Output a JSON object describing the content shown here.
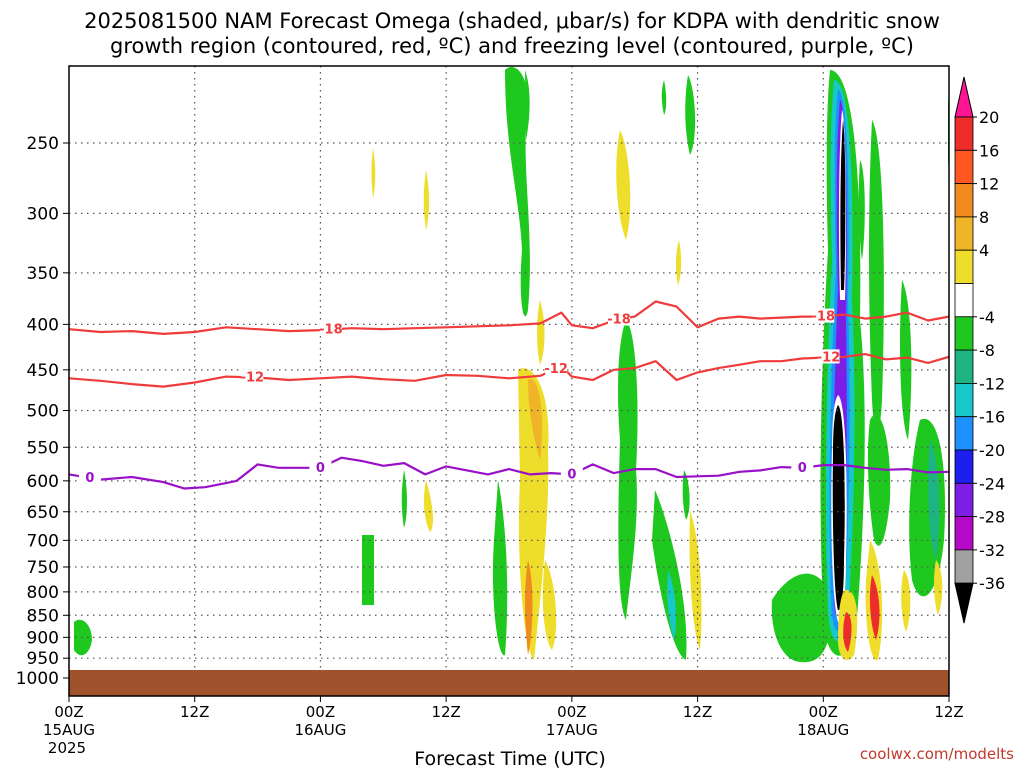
{
  "title": {
    "line1": "2025081500 NAM Forecast Omega (shaded, μbar/s) for KDPA with dendritic snow",
    "line2": "growth region (contoured, red, ºC) and freezing level (contoured, purple, ºC)"
  },
  "credit": "coolwx.com/modelts",
  "colors": {
    "dgz_contour": "#ef3b3b",
    "freezing_contour": "#9a10c8",
    "ground": "#a0522d",
    "grid": "#555555"
  },
  "chart_data": {
    "type": "heatmap",
    "xlabel": "Forecast Time (UTC)",
    "ylabel": "",
    "y_scale": "log-pressure",
    "ylim": [
      1030,
      200
    ],
    "x_range_hours": [
      0,
      84
    ],
    "grid": true,
    "yticks": [
      250,
      300,
      350,
      400,
      450,
      500,
      550,
      600,
      650,
      700,
      750,
      800,
      850,
      900,
      950,
      1000
    ],
    "xticks": [
      {
        "hour": 0,
        "label": "00Z",
        "date": "15AUG",
        "year": "2025"
      },
      {
        "hour": 12,
        "label": "12Z",
        "date": "",
        "year": ""
      },
      {
        "hour": 24,
        "label": "00Z",
        "date": "16AUG",
        "year": ""
      },
      {
        "hour": 36,
        "label": "12Z",
        "date": "",
        "year": ""
      },
      {
        "hour": 48,
        "label": "00Z",
        "date": "17AUG",
        "year": ""
      },
      {
        "hour": 60,
        "label": "12Z",
        "date": "",
        "year": ""
      },
      {
        "hour": 72,
        "label": "00Z",
        "date": "18AUG",
        "year": ""
      },
      {
        "hour": 84,
        "label": "12Z",
        "date": "",
        "year": ""
      }
    ],
    "colorbar": {
      "labels": [
        20,
        16,
        12,
        8,
        4,
        -4,
        -8,
        -12,
        -16,
        -20,
        -24,
        -28,
        -32,
        -36
      ],
      "colors": [
        "#ff1493",
        "#ee2c2c",
        "#ff5722",
        "#f08c1e",
        "#f0b429",
        "#eedd2a",
        "#ffffff",
        "#1ec81e",
        "#1eb482",
        "#16c8c8",
        "#1e90ff",
        "#1e1eee",
        "#7c1ee6",
        "#b40ac8",
        "#a0a0a0",
        "#000000"
      ]
    },
    "contours": [
      {
        "name": "dgz_-18",
        "label": "-18",
        "color_key": "dgz_contour",
        "hours": [
          0,
          3,
          6,
          9,
          12,
          15,
          18,
          21,
          24,
          27,
          30,
          33,
          36,
          39,
          42,
          45,
          47,
          48,
          50,
          52,
          54,
          56,
          58,
          60,
          62,
          64,
          66,
          68,
          70,
          72,
          74,
          76,
          78,
          80,
          82,
          84
        ],
        "pressure": [
          405,
          408,
          407,
          410,
          408,
          403,
          405,
          407,
          406,
          404,
          405,
          404,
          403,
          402,
          401,
          399,
          388,
          401,
          404,
          396,
          392,
          377,
          382,
          403,
          394,
          392,
          394,
          393,
          392,
          392,
          390,
          394,
          392,
          388,
          396,
          392
        ]
      },
      {
        "name": "dgz_-12",
        "label": "-12",
        "color_key": "dgz_contour",
        "hours": [
          0,
          3,
          6,
          9,
          12,
          15,
          18,
          21,
          24,
          27,
          30,
          33,
          36,
          39,
          42,
          45,
          47,
          48,
          50,
          52,
          54,
          56,
          58,
          60,
          62,
          64,
          66,
          68,
          70,
          72,
          74,
          76,
          78,
          80,
          82,
          84
        ],
        "pressure": [
          460,
          463,
          467,
          470,
          465,
          458,
          459,
          462,
          460,
          458,
          461,
          463,
          456,
          457,
          460,
          457,
          446,
          458,
          462,
          450,
          448,
          440,
          462,
          453,
          448,
          444,
          440,
          440,
          437,
          436,
          435,
          432,
          438,
          436,
          442,
          435
        ]
      },
      {
        "name": "freezing_0",
        "label": "0",
        "color_key": "freezing_contour",
        "hours": [
          0,
          3,
          6,
          9,
          11,
          13,
          16,
          18,
          20,
          22,
          24,
          26,
          28,
          30,
          32,
          34,
          36,
          38,
          40,
          42,
          44,
          46,
          48,
          50,
          52,
          54,
          56,
          58,
          60,
          62,
          64,
          66,
          68,
          70,
          72,
          74,
          76,
          78,
          80,
          82,
          84
        ],
        "pressure": [
          590,
          598,
          594,
          602,
          612,
          610,
          600,
          575,
          580,
          580,
          580,
          565,
          570,
          577,
          573,
          590,
          578,
          584,
          590,
          582,
          590,
          588,
          590,
          575,
          588,
          582,
          582,
          594,
          593,
          592,
          586,
          584,
          579,
          580,
          576,
          576,
          580,
          583,
          582,
          587,
          586
        ]
      }
    ]
  }
}
